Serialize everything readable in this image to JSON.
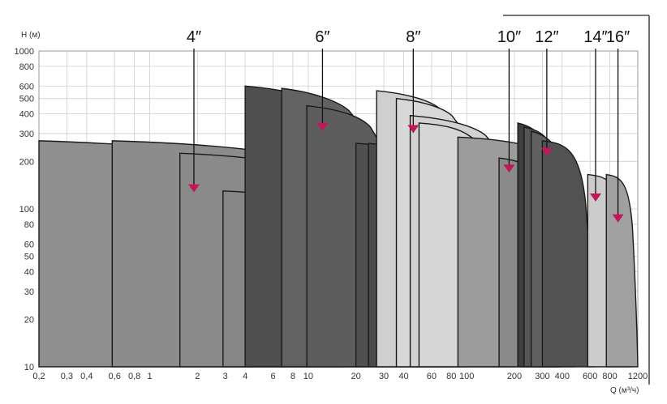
{
  "chart_data": {
    "type": "area",
    "title": "",
    "ylabel": "H (м)",
    "xlabel": "Q (м³/ч)",
    "x_scale": "log",
    "y_scale": "log",
    "xlim": [
      0.2,
      1200
    ],
    "ylim": [
      10,
      1000
    ],
    "grid": true,
    "x_ticks": [
      {
        "value": 0.2,
        "label": "0,2"
      },
      {
        "value": 0.3,
        "label": "0,3"
      },
      {
        "value": 0.4,
        "label": "0,4"
      },
      {
        "value": 0.6,
        "label": "0,6"
      },
      {
        "value": 0.8,
        "label": "0,8"
      },
      {
        "value": 1,
        "label": "1"
      },
      {
        "value": 2,
        "label": "2"
      },
      {
        "value": 3,
        "label": "3"
      },
      {
        "value": 4,
        "label": "4"
      },
      {
        "value": 6,
        "label": "6"
      },
      {
        "value": 8,
        "label": "8"
      },
      {
        "value": 10,
        "label": "10"
      },
      {
        "value": 20,
        "label": "20"
      },
      {
        "value": 30,
        "label": "30"
      },
      {
        "value": 40,
        "label": "40"
      },
      {
        "value": 60,
        "label": "60"
      },
      {
        "value": 80,
        "label": "80"
      },
      {
        "value": 100,
        "label": "100"
      },
      {
        "value": 200,
        "label": "200"
      },
      {
        "value": 300,
        "label": "300"
      },
      {
        "value": 400,
        "label": "400"
      },
      {
        "value": 600,
        "label": "600"
      },
      {
        "value": 800,
        "label": "800"
      },
      {
        "value": 1200,
        "label": "1200"
      }
    ],
    "y_ticks": [
      {
        "value": 10,
        "label": "10"
      },
      {
        "value": 20,
        "label": "20"
      },
      {
        "value": 30,
        "label": "30"
      },
      {
        "value": 40,
        "label": "40"
      },
      {
        "value": 50,
        "label": "50"
      },
      {
        "value": 60,
        "label": "60"
      },
      {
        "value": 80,
        "label": "80"
      },
      {
        "value": 100,
        "label": "100"
      },
      {
        "value": 200,
        "label": "200"
      },
      {
        "value": 300,
        "label": "300"
      },
      {
        "value": 400,
        "label": "400"
      },
      {
        "value": 500,
        "label": "500"
      },
      {
        "value": 600,
        "label": "600"
      },
      {
        "value": 800,
        "label": "800"
      },
      {
        "value": 1000,
        "label": "1000"
      }
    ],
    "series": [
      {
        "q_min": 0.2,
        "q_max": 4.5,
        "h_left": 270,
        "h_flat": 235,
        "h_right": 200,
        "color": "#8f8f8f"
      },
      {
        "q_min": 0.58,
        "q_max": 18,
        "h_left": 270,
        "h_flat": 230,
        "h_right": 130,
        "color": "#8c8c8c"
      },
      {
        "q_min": 1.55,
        "q_max": 16,
        "h_left": 225,
        "h_flat": 195,
        "h_right": 105,
        "color": "#8a8a8a"
      },
      {
        "q_min": 2.9,
        "q_max": 24,
        "h_left": 130,
        "h_flat": 112,
        "h_right": 40,
        "color": "#868686"
      },
      {
        "q_min": 4.0,
        "q_max": 17,
        "h_left": 600,
        "h_flat": 500,
        "h_right": 380,
        "color": "#4f4f4f"
      },
      {
        "q_min": 6.8,
        "q_max": 22,
        "h_left": 580,
        "h_flat": 470,
        "h_right": 300,
        "color": "#626262"
      },
      {
        "q_min": 9.8,
        "q_max": 30,
        "h_left": 450,
        "h_flat": 380,
        "h_right": 210,
        "color": "#5d5d5d"
      },
      {
        "q_min": 20,
        "q_max": 75,
        "h_left": 260,
        "h_flat": 230,
        "h_right": 100,
        "color": "#505050"
      },
      {
        "q_min": 24,
        "q_max": 85,
        "h_left": 260,
        "h_flat": 220,
        "h_right": 10,
        "color": "#4a4a4a"
      },
      {
        "q_min": 27,
        "q_max": 80,
        "h_left": 560,
        "h_flat": 480,
        "h_right": 330,
        "color": "#cfcfcf"
      },
      {
        "q_min": 36,
        "q_max": 95,
        "h_left": 500,
        "h_flat": 430,
        "h_right": 290,
        "color": "#d8d8d8"
      },
      {
        "q_min": 44,
        "q_max": 165,
        "h_left": 390,
        "h_flat": 330,
        "h_right": 200,
        "color": "#d2d2d2"
      },
      {
        "q_min": 50,
        "q_max": 200,
        "h_left": 350,
        "h_flat": 300,
        "h_right": 10,
        "color": "#d6d6d6"
      },
      {
        "q_min": 88,
        "q_max": 480,
        "h_left": 285,
        "h_flat": 250,
        "h_right": 110,
        "color": "#9c9c9c"
      },
      {
        "q_min": 160,
        "q_max": 390,
        "h_left": 210,
        "h_flat": 180,
        "h_right": 10,
        "color": "#8a8a8a"
      },
      {
        "q_min": 210,
        "q_max": 330,
        "h_left": 350,
        "h_flat": 300,
        "h_right": 190,
        "color": "#3f3f3f"
      },
      {
        "q_min": 230,
        "q_max": 360,
        "h_left": 330,
        "h_flat": 290,
        "h_right": 180,
        "color": "#555555"
      },
      {
        "q_min": 255,
        "q_max": 380,
        "h_left": 310,
        "h_flat": 270,
        "h_right": 200,
        "color": "#606060"
      },
      {
        "q_min": 300,
        "q_max": 640,
        "h_left": 270,
        "h_flat": 240,
        "h_right": 10,
        "color": "#525252"
      },
      {
        "q_min": 580,
        "q_max": 1100,
        "h_left": 165,
        "h_flat": 150,
        "h_right": 10,
        "color": "#cccccc"
      },
      {
        "q_min": 760,
        "q_max": 1200,
        "h_left": 165,
        "h_flat": 150,
        "h_right": 10,
        "color": "#a0a0a0"
      }
    ],
    "annotations": [
      {
        "label": "4″",
        "q": 1.9,
        "h": 135
      },
      {
        "label": "6″",
        "q": 12.3,
        "h": 330
      },
      {
        "label": "8″",
        "q": 46,
        "h": 320
      },
      {
        "label": "10″",
        "q": 185,
        "h": 180
      },
      {
        "label": "12″",
        "q": 320,
        "h": 230
      },
      {
        "label": "14″",
        "q": 650,
        "h": 118
      },
      {
        "label": "16″",
        "q": 900,
        "h": 87
      }
    ],
    "marker_color": "#c2185b"
  }
}
